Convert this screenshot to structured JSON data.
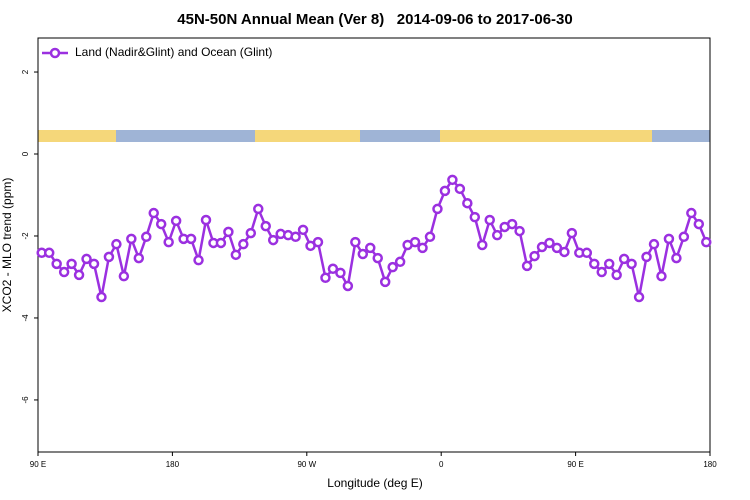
{
  "chart_data": {
    "type": "line",
    "title": "45N-50N Annual Mean (Ver 8)   2014-09-06 to 2017-06-30",
    "x_label": "Longitude (deg E)",
    "y_label": "XCO2 - MLO trend (ppm)",
    "x": [
      92.5,
      97.5,
      102.5,
      107.5,
      112.5,
      117.5,
      122.5,
      127.5,
      132.5,
      137.5,
      142.5,
      147.5,
      152.5,
      157.5,
      162.5,
      167.5,
      172.5,
      177.5,
      182.5,
      187.5,
      192.5,
      197.5,
      202.5,
      207.5,
      212.5,
      217.5,
      222.5,
      227.5,
      232.5,
      237.5,
      242.5,
      247.5,
      252.5,
      257.5,
      262.5,
      267.5,
      272.5,
      277.5,
      282.5,
      287.5,
      292.5,
      297.5,
      302.5,
      307.5,
      312.5,
      317.5,
      322.5,
      327.5,
      332.5,
      337.5,
      342.5,
      347.5,
      352.5,
      357.5,
      362.5,
      367.5,
      372.5,
      377.5,
      382.5,
      387.5,
      392.5,
      397.5,
      402.5,
      407.5,
      412.5,
      417.5,
      422.5,
      427.5,
      432.5,
      437.5,
      442.5,
      447.5,
      452.5,
      457.5,
      462.5,
      467.5,
      472.5,
      477.5,
      482.5,
      487.5,
      492.5,
      497.5,
      502.5,
      507.5,
      512.5,
      517.5,
      522.5,
      527.5,
      532.5,
      537.5
    ],
    "series": [
      {
        "name": "Land (Nadir&Glint) and Ocean (Glint)",
        "color": "#9b30e0",
        "values": [
          -2.41,
          -2.41,
          -2.68,
          -2.88,
          -2.68,
          -2.95,
          -2.56,
          -2.68,
          -3.49,
          -2.51,
          -2.2,
          -2.98,
          -2.07,
          -2.54,
          -2.02,
          -1.44,
          -1.71,
          -2.15,
          -1.63,
          -2.07,
          -2.07,
          -2.59,
          -1.61,
          -2.17,
          -2.17,
          -1.9,
          -2.46,
          -2.2,
          -1.93,
          -1.34,
          -1.76,
          -2.1,
          -1.95,
          -1.98,
          -2.02,
          -1.85,
          -2.24,
          -2.15,
          -3.02,
          -2.8,
          -2.9,
          -3.22,
          -2.15,
          -2.44,
          -2.29,
          -2.54,
          -3.12,
          -2.76,
          -2.63,
          -2.22,
          -2.15,
          -2.29,
          -2.02,
          -1.34,
          -0.9,
          -0.63,
          -0.85,
          -1.2,
          -1.54,
          -2.22,
          -1.61,
          -1.98,
          -1.78,
          -1.71,
          -1.88,
          -2.73,
          -2.49,
          -2.27,
          -2.17,
          -2.29,
          -2.39,
          -1.93,
          -2.41,
          -2.41,
          -2.68,
          -2.88,
          -2.68,
          -2.95,
          -2.56,
          -2.68,
          -3.49,
          -2.51,
          -2.2,
          -2.98,
          -2.07,
          -2.54,
          -2.02,
          -1.44,
          -1.71,
          -2.15
        ]
      }
    ],
    "xlim": [
      90,
      540
    ],
    "xticks": [
      {
        "value": 90,
        "label": "90 E"
      },
      180,
      {
        "value": 270,
        "label": "90 W"
      },
      {
        "value": 360,
        "label": "0"
      },
      {
        "value": 450,
        "label": "90 E"
      },
      {
        "value": 540,
        "label": "180"
      }
    ],
    "ylim": [
      -7.27,
      2.83
    ],
    "yticks": [
      2,
      0,
      -2,
      -4,
      -6
    ],
    "legend": "top-left"
  }
}
